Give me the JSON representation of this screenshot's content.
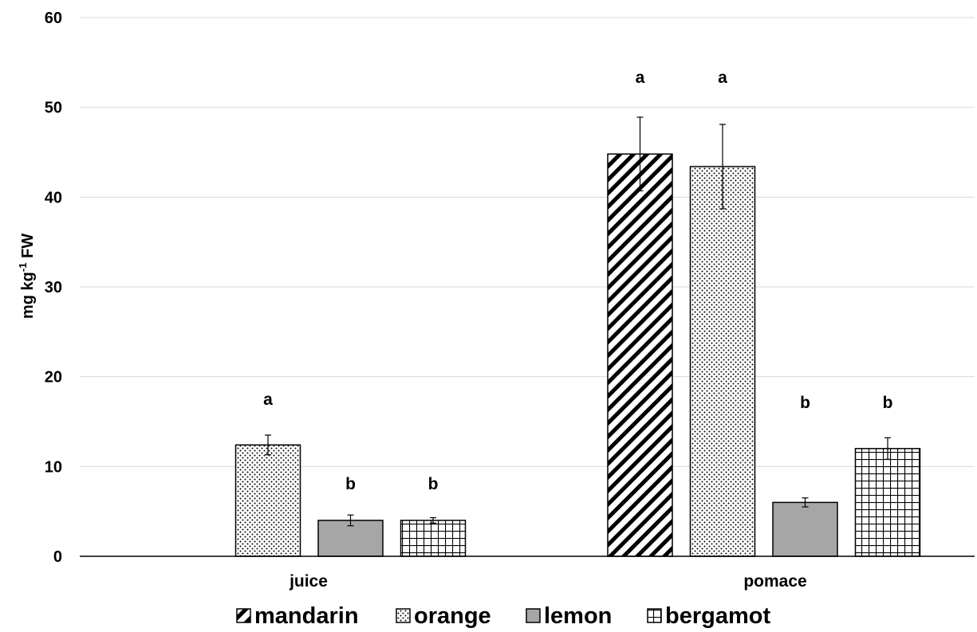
{
  "chart_data": {
    "type": "bar",
    "categories": [
      "juice",
      "pomace"
    ],
    "ylabel": "mg kg",
    "ylabel_superscript": "-1",
    "ylabel_suffix": " FW",
    "ylim": [
      0,
      60
    ],
    "yticks": [
      "0",
      "10",
      "20",
      "30",
      "40",
      "50",
      "60"
    ],
    "grid": true,
    "legend_position": "bottom",
    "series": [
      {
        "name": "mandarin",
        "pattern": "diagonal-hatch",
        "values": [
          null,
          44.8
        ],
        "errors": [
          null,
          4.1
        ],
        "letters": [
          "",
          "a"
        ]
      },
      {
        "name": "orange",
        "pattern": "dots",
        "values": [
          12.4,
          43.4
        ],
        "errors": [
          1.1,
          4.7
        ],
        "letters": [
          "a",
          "a"
        ]
      },
      {
        "name": "lemon",
        "pattern": "solid-gray",
        "values": [
          4.0,
          6.0
        ],
        "errors": [
          0.6,
          0.5
        ],
        "letters": [
          "b",
          "b"
        ]
      },
      {
        "name": "bergamot",
        "pattern": "grid",
        "values": [
          4.0,
          12.0
        ],
        "errors": [
          0.3,
          1.2
        ],
        "letters": [
          "b",
          "b"
        ]
      }
    ],
    "colors": {
      "bar_outline": "#000000",
      "lemon_fill": "#a6a6a6",
      "gridline": "#d9d9d9",
      "axis": "#000000"
    }
  }
}
